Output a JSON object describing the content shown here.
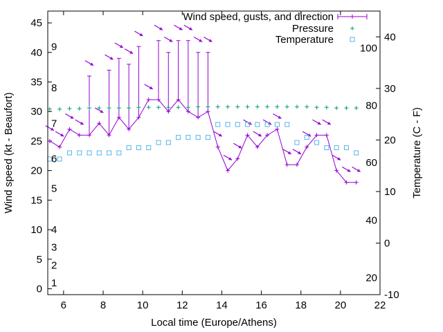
{
  "chart_data": {
    "type": "line",
    "title": "",
    "xlabel": "Local time (Europe/Athens)",
    "ylabel": "Wind speed (kt - Beaufort)",
    "y2label": "Temperature (C - F)",
    "xlim": [
      5.2,
      22
    ],
    "ylim": [
      -1,
      47
    ],
    "y2lim": [
      -10,
      45
    ],
    "x_ticks": [
      6,
      8,
      10,
      12,
      14,
      16,
      18,
      20,
      22
    ],
    "y_ticks": [
      0,
      5,
      10,
      15,
      20,
      25,
      30,
      35,
      40,
      45
    ],
    "y2_ticks": [
      -10,
      0,
      10,
      20,
      30,
      40
    ],
    "beaufort_labels": [
      {
        "text": "1",
        "y": 1
      },
      {
        "text": "2",
        "y": 4
      },
      {
        "text": "3",
        "y": 7
      },
      {
        "text": "4",
        "y": 10
      },
      {
        "text": "5",
        "y": 17
      },
      {
        "text": "6",
        "y": 22
      },
      {
        "text": "7",
        "y": 28
      },
      {
        "text": "8",
        "y": 34
      },
      {
        "text": "9",
        "y": 41
      }
    ],
    "fahrenheit_labels": [
      {
        "text": "20",
        "c": -6.7
      },
      {
        "text": "40",
        "c": 4.4
      },
      {
        "text": "60",
        "c": 15.6
      },
      {
        "text": "80",
        "c": 26.7
      },
      {
        "text": "100",
        "c": 37.8
      }
    ],
    "legend_position": "top-right",
    "series": [
      {
        "name": "Wind speed, gusts, and direction",
        "color": "#9400d3",
        "x": [
          5.3,
          5.8,
          6.3,
          6.8,
          7.3,
          7.8,
          8.3,
          8.8,
          9.3,
          9.8,
          10.3,
          10.8,
          11.3,
          11.8,
          12.3,
          12.8,
          13.3,
          13.8,
          14.3,
          14.8,
          15.3,
          15.8,
          16.3,
          16.8,
          17.3,
          17.8,
          18.3,
          18.8,
          19.3,
          19.8,
          20.3,
          20.8
        ],
        "values": [
          25,
          24,
          27,
          26,
          26,
          28,
          26,
          29,
          27,
          29,
          32,
          32,
          30,
          32,
          30,
          29,
          30,
          24,
          20,
          22,
          26,
          24,
          26,
          27,
          21,
          21,
          24,
          26,
          26,
          20,
          18,
          18
        ],
        "gusts": [
          null,
          null,
          null,
          null,
          36,
          null,
          37,
          39,
          38,
          41,
          null,
          42,
          40,
          42,
          42,
          40,
          40,
          null,
          null,
          null,
          null,
          null,
          null,
          null,
          null,
          null,
          null,
          null,
          null,
          null,
          null,
          null
        ],
        "direction_deg": [
          120,
          120,
          120,
          120,
          120,
          120,
          120,
          120,
          120,
          120,
          120,
          120,
          120,
          120,
          120,
          120,
          120,
          120,
          120,
          120,
          120,
          120,
          120,
          120,
          120,
          120,
          120,
          120,
          120,
          120,
          120,
          120
        ]
      },
      {
        "name": "Pressure",
        "color": "#009e73",
        "x": [
          5.3,
          5.8,
          6.3,
          6.8,
          7.3,
          7.8,
          8.3,
          8.8,
          9.3,
          9.8,
          10.3,
          10.8,
          11.3,
          11.8,
          12.3,
          12.8,
          13.3,
          13.8,
          14.3,
          14.8,
          15.3,
          15.8,
          16.3,
          16.8,
          17.3,
          17.8,
          18.3,
          18.8,
          19.3,
          19.8,
          20.3,
          20.8
        ],
        "values": [
          30.4,
          30.4,
          30.5,
          30.5,
          30.6,
          30.6,
          30.6,
          30.6,
          30.6,
          30.7,
          30.7,
          30.7,
          30.7,
          30.7,
          30.7,
          30.8,
          30.8,
          30.8,
          30.8,
          30.8,
          30.8,
          30.8,
          30.8,
          30.8,
          30.8,
          30.8,
          30.8,
          30.7,
          30.7,
          30.6,
          30.6,
          30.6
        ]
      },
      {
        "name": "Temperature",
        "color": "#56b4e9",
        "x": [
          5.3,
          5.8,
          6.3,
          6.8,
          7.3,
          7.8,
          8.3,
          8.8,
          9.3,
          9.8,
          10.3,
          10.8,
          11.3,
          11.8,
          12.3,
          12.8,
          13.3,
          13.8,
          14.3,
          14.8,
          15.3,
          15.8,
          16.3,
          16.8,
          17.3,
          17.8,
          18.3,
          18.8,
          19.3,
          19.8,
          20.3,
          20.8
        ],
        "values": [
          16.3,
          16.3,
          17.5,
          17.5,
          17.5,
          17.5,
          17.5,
          17.5,
          18.5,
          18.5,
          18.5,
          19.5,
          19.5,
          20.5,
          20.5,
          20.5,
          20.5,
          23,
          23,
          23,
          23,
          23,
          23,
          23,
          23,
          19.5,
          20.5,
          19.5,
          18.5,
          18.5,
          18.5,
          17.5
        ]
      }
    ]
  }
}
